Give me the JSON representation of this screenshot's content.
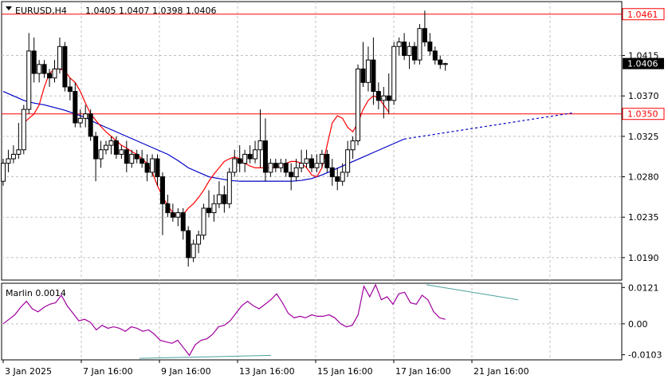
{
  "header": {
    "symbol": "EURUSD,H4",
    "ohlc": "1.0405 1.0407 1.0398 1.0406"
  },
  "colors": {
    "background": "#ffffff",
    "grid": "#c0c0c0",
    "candle": "#000000",
    "candle_up_fill": "#ffffff",
    "candle_down_fill": "#000000",
    "level_line": "#ff0000",
    "ma_fast": "#ff0000",
    "ma_slow": "#0000c8",
    "oscillator": "#a000a0",
    "divergence": "#4aa0a0"
  },
  "chart_data": [
    {
      "type": "candlestick",
      "title": "EURUSD,H4",
      "ylim": [
        1.0165,
        1.0475
      ],
      "y_ticks": [
        "1.0415",
        "1.0370",
        "1.0325",
        "1.0280",
        "1.0235",
        "1.0190"
      ],
      "x_ticks": [
        "3 Jan 2025",
        "7 Jan 16:00",
        "9 Jan 16:00",
        "13 Jan 16:00",
        "15 Jan 16:00",
        "17 Jan 16:00",
        "21 Jan 16:00"
      ],
      "levels": [
        {
          "value": 1.0461,
          "label": "1.0461"
        },
        {
          "value": 1.035,
          "label": "1.0350"
        }
      ],
      "current_price": {
        "value": 1.0406,
        "label": "1.0406"
      },
      "grid": true,
      "candles": [
        [
          1.0275,
          1.03,
          1.027,
          1.0295
        ],
        [
          1.0295,
          1.031,
          1.0285,
          1.03
        ],
        [
          1.03,
          1.0315,
          1.0295,
          1.0305
        ],
        [
          1.0305,
          1.034,
          1.03,
          1.031
        ],
        [
          1.031,
          1.036,
          1.0305,
          1.0355
        ],
        [
          1.0355,
          1.044,
          1.035,
          1.042
        ],
        [
          1.042,
          1.0435,
          1.0385,
          1.0395
        ],
        [
          1.0395,
          1.041,
          1.0385,
          1.0405
        ],
        [
          1.0405,
          1.041,
          1.039,
          1.0395
        ],
        [
          1.0395,
          1.04,
          1.038,
          1.039
        ],
        [
          1.039,
          1.041,
          1.0385,
          1.04
        ],
        [
          1.04,
          1.0435,
          1.0395,
          1.0425
        ],
        [
          1.0425,
          1.043,
          1.0375,
          1.038
        ],
        [
          1.038,
          1.039,
          1.0365,
          1.0375
        ],
        [
          1.0375,
          1.0385,
          1.0335,
          1.034
        ],
        [
          1.034,
          1.0355,
          1.0335,
          1.0345
        ],
        [
          1.0345,
          1.036,
          1.0335,
          1.035
        ],
        [
          1.035,
          1.0355,
          1.032,
          1.0325
        ],
        [
          1.0325,
          1.033,
          1.0275,
          1.03
        ],
        [
          1.03,
          1.032,
          1.029,
          1.031
        ],
        [
          1.031,
          1.032,
          1.0305,
          1.0315
        ],
        [
          1.0315,
          1.0325,
          1.0305,
          1.032
        ],
        [
          1.032,
          1.0325,
          1.03,
          1.0305
        ],
        [
          1.0305,
          1.0315,
          1.03,
          1.031
        ],
        [
          1.031,
          1.032,
          1.0285,
          1.0295
        ],
        [
          1.0295,
          1.031,
          1.029,
          1.0305
        ],
        [
          1.0305,
          1.031,
          1.0295,
          1.03
        ],
        [
          1.03,
          1.031,
          1.029,
          1.0295
        ],
        [
          1.0295,
          1.0305,
          1.0275,
          1.0285
        ],
        [
          1.0285,
          1.0305,
          1.028,
          1.03
        ],
        [
          1.03,
          1.0305,
          1.027,
          1.028
        ],
        [
          1.028,
          1.0285,
          1.0215,
          1.025
        ],
        [
          1.025,
          1.026,
          1.0235,
          1.024
        ],
        [
          1.024,
          1.025,
          1.023,
          1.0235
        ],
        [
          1.0235,
          1.0245,
          1.0225,
          1.024
        ],
        [
          1.024,
          1.0245,
          1.021,
          1.022
        ],
        [
          1.022,
          1.0225,
          1.018,
          1.019
        ],
        [
          1.019,
          1.021,
          1.0185,
          1.0205
        ],
        [
          1.0205,
          1.022,
          1.0195,
          1.0215
        ],
        [
          1.0215,
          1.025,
          1.021,
          1.0245
        ],
        [
          1.0245,
          1.0265,
          1.0235,
          1.024
        ],
        [
          1.024,
          1.026,
          1.023,
          1.025
        ],
        [
          1.025,
          1.0275,
          1.0245,
          1.026
        ],
        [
          1.026,
          1.027,
          1.024,
          1.025
        ],
        [
          1.025,
          1.029,
          1.0245,
          1.0285
        ],
        [
          1.0285,
          1.031,
          1.028,
          1.03
        ],
        [
          1.03,
          1.0315,
          1.0285,
          1.0295
        ],
        [
          1.0295,
          1.031,
          1.0285,
          1.0305
        ],
        [
          1.0305,
          1.0315,
          1.0295,
          1.03
        ],
        [
          1.03,
          1.032,
          1.0295,
          1.031
        ],
        [
          1.031,
          1.0355,
          1.029,
          1.032
        ],
        [
          1.032,
          1.0345,
          1.0275,
          1.0285
        ],
        [
          1.0285,
          1.03,
          1.028,
          1.0295
        ],
        [
          1.0295,
          1.03,
          1.0285,
          1.029
        ],
        [
          1.029,
          1.03,
          1.0285,
          1.0295
        ],
        [
          1.0295,
          1.03,
          1.028,
          1.0285
        ],
        [
          1.0285,
          1.0295,
          1.0265,
          1.028
        ],
        [
          1.028,
          1.03,
          1.0275,
          1.029
        ],
        [
          1.029,
          1.031,
          1.0285,
          1.0295
        ],
        [
          1.0295,
          1.031,
          1.029,
          1.03
        ],
        [
          1.03,
          1.0305,
          1.0285,
          1.029
        ],
        [
          1.029,
          1.0305,
          1.0285,
          1.0295
        ],
        [
          1.0295,
          1.031,
          1.029,
          1.0305
        ],
        [
          1.0305,
          1.031,
          1.0285,
          1.029
        ],
        [
          1.029,
          1.03,
          1.027,
          1.028
        ],
        [
          1.028,
          1.029,
          1.0265,
          1.0275
        ],
        [
          1.0275,
          1.0295,
          1.027,
          1.0285
        ],
        [
          1.0285,
          1.032,
          1.028,
          1.031
        ],
        [
          1.031,
          1.0325,
          1.03,
          1.032
        ],
        [
          1.032,
          1.0405,
          1.0315,
          1.04
        ],
        [
          1.04,
          1.043,
          1.038,
          1.0385
        ],
        [
          1.0385,
          1.0425,
          1.0375,
          1.041
        ],
        [
          1.041,
          1.0435,
          1.036,
          1.0375
        ],
        [
          1.0375,
          1.0385,
          1.0355,
          1.0365
        ],
        [
          1.0365,
          1.038,
          1.0345,
          1.037
        ],
        [
          1.037,
          1.0395,
          1.035,
          1.0365
        ],
        [
          1.0365,
          1.043,
          1.036,
          1.0425
        ],
        [
          1.0425,
          1.0435,
          1.0415,
          1.043
        ],
        [
          1.043,
          1.044,
          1.041,
          1.0415
        ],
        [
          1.0415,
          1.043,
          1.04,
          1.0425
        ],
        [
          1.0425,
          1.043,
          1.0405,
          1.041
        ],
        [
          1.041,
          1.045,
          1.0405,
          1.0445
        ],
        [
          1.0445,
          1.0465,
          1.0425,
          1.043
        ],
        [
          1.043,
          1.044,
          1.0415,
          1.042
        ],
        [
          1.042,
          1.0425,
          1.0405,
          1.041
        ],
        [
          1.041,
          1.0415,
          1.04,
          1.0405
        ],
        [
          1.0405,
          1.0407,
          1.0398,
          1.0406
        ]
      ],
      "ma_fast": [
        1.034,
        1.0345,
        1.035,
        1.036,
        1.038,
        1.0395,
        1.04,
        1.04,
        1.0398,
        1.039,
        1.0385,
        1.0375,
        1.0362,
        1.035,
        1.0343,
        1.0336,
        1.033,
        1.0325,
        1.032,
        1.0315,
        1.0312,
        1.0308,
        1.0305,
        1.03,
        1.0295,
        1.0285,
        1.027,
        1.0258,
        1.0248,
        1.024,
        1.0235,
        1.0238,
        1.0245,
        1.025,
        1.0257,
        1.0265,
        1.0275,
        1.0283,
        1.029,
        1.0297,
        1.03,
        1.0302,
        1.03,
        1.0295,
        1.0292,
        1.029,
        1.029,
        1.029,
        1.029,
        1.029,
        1.0292,
        1.0295,
        1.0297,
        1.0297,
        1.0295,
        1.029,
        1.0282,
        1.028,
        1.029,
        1.0315,
        1.034,
        1.0348,
        1.0345,
        1.0335,
        1.033,
        1.034,
        1.0355,
        1.0365,
        1.037,
        1.0368,
        1.036,
        1.0352
      ],
      "ma_fast_start": 4,
      "ma_slow": [
        1.0375,
        1.037,
        1.0365,
        1.0362,
        1.036,
        1.0357,
        1.0354,
        1.035,
        1.0346,
        1.034,
        1.0335,
        1.033,
        1.0325,
        1.032,
        1.0315,
        1.031,
        1.0305,
        1.0298,
        1.029,
        1.0285,
        1.028,
        1.0278,
        1.0276,
        1.0275,
        1.0275,
        1.0275,
        1.0275,
        1.0275,
        1.0275,
        1.0276,
        1.0278,
        1.0282,
        1.0287,
        1.0292,
        1.0297,
        1.0302,
        1.0307,
        1.0312,
        1.0317,
        1.0322
      ],
      "ma_slow_step": 2
    },
    {
      "type": "line",
      "title": "Marlin 0.0014",
      "ylim": [
        -0.012,
        0.0135
      ],
      "y_ticks": [
        "0.0121",
        "0.00",
        "-0.0103"
      ],
      "series": [
        {
          "name": "Marlin",
          "values": [
            0.0,
            0.0015,
            0.003,
            0.0055,
            0.0075,
            0.005,
            0.004,
            0.0055,
            0.0065,
            0.007,
            0.0095,
            0.006,
            0.0035,
            0.001,
            0.0015,
            0.0005,
            -0.002,
            -0.0005,
            -0.0015,
            -0.001,
            -0.0015,
            -0.0025,
            -0.001,
            -0.0015,
            -0.0025,
            -0.002,
            -0.0035,
            -0.0055,
            -0.006,
            -0.0065,
            -0.0055,
            -0.008,
            -0.0105,
            -0.007,
            -0.0055,
            -0.005,
            -0.0035,
            -0.001,
            -0.0005,
            0.001,
            0.0035,
            0.006,
            0.0075,
            0.006,
            0.005,
            0.0065,
            0.008,
            0.01,
            0.007,
            0.0035,
            0.002,
            0.0025,
            0.002,
            0.003,
            0.0025,
            0.0025,
            0.003,
            0.002,
            0.0,
            -0.001,
            -0.0005,
            0.003,
            0.0125,
            0.009,
            0.013,
            0.008,
            0.009,
            0.0065,
            0.01,
            0.0105,
            0.007,
            0.0065,
            0.0095,
            0.008,
            0.004,
            0.002,
            0.0015
          ]
        }
      ]
    }
  ]
}
